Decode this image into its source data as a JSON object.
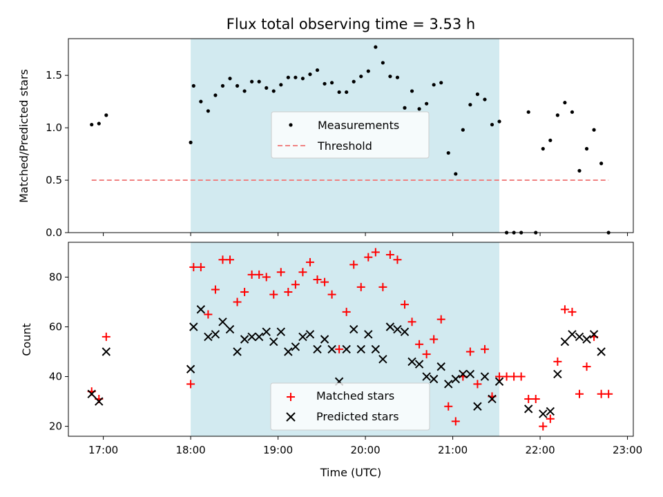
{
  "chart_data": [
    {
      "type": "scatter",
      "title": "Flux total observing time = 3.53 h",
      "xlabel": "",
      "ylabel": "Matched/Predicted stars",
      "xlim": [
        "16:36",
        "23:04"
      ],
      "ylim": [
        0,
        1.85
      ],
      "yticks": [
        "0.0",
        "0.5",
        "1.0",
        "1.5"
      ],
      "grid": false,
      "legend_position": "center",
      "shaded_interval": [
        "18:00",
        "21:32"
      ],
      "shade_color": "#d2eaf0",
      "series": [
        {
          "name": "Measurements",
          "marker": "dot",
          "color": "#000000",
          "x": [
            "16:52",
            "16:57",
            "17:02",
            "18:00",
            "18:02",
            "18:07",
            "18:12",
            "18:17",
            "18:22",
            "18:27",
            "18:32",
            "18:37",
            "18:42",
            "18:47",
            "18:52",
            "18:57",
            "19:02",
            "19:07",
            "19:12",
            "19:17",
            "19:22",
            "19:27",
            "19:32",
            "19:37",
            "19:42",
            "19:47",
            "19:52",
            "19:57",
            "20:02",
            "20:07",
            "20:12",
            "20:17",
            "20:22",
            "20:27",
            "20:32",
            "20:37",
            "20:42",
            "20:47",
            "20:52",
            "20:57",
            "21:02",
            "21:07",
            "21:12",
            "21:17",
            "21:22",
            "21:27",
            "21:32",
            "21:37",
            "21:42",
            "21:47",
            "21:52",
            "21:57",
            "22:02",
            "22:07",
            "22:12",
            "22:17",
            "22:22",
            "22:27",
            "22:32",
            "22:37",
            "22:42",
            "22:47"
          ],
          "y": [
            1.03,
            1.04,
            1.12,
            0.86,
            1.4,
            1.25,
            1.16,
            1.31,
            1.4,
            1.47,
            1.4,
            1.35,
            1.44,
            1.44,
            1.38,
            1.35,
            1.41,
            1.48,
            1.48,
            1.47,
            1.51,
            1.55,
            1.42,
            1.43,
            1.34,
            1.34,
            1.44,
            1.49,
            1.54,
            1.77,
            1.62,
            1.49,
            1.48,
            1.19,
            1.35,
            1.18,
            1.23,
            1.41,
            1.43,
            0.76,
            0.56,
            0.98,
            1.22,
            1.32,
            1.27,
            1.03,
            1.06,
            0,
            0,
            0,
            1.15,
            0,
            0.8,
            0.88,
            1.12,
            1.24,
            1.15,
            0.59,
            0.8,
            0.98,
            0.66,
            0
          ]
        },
        {
          "name": "Threshold",
          "line": "dashed",
          "color": "#f08080",
          "x": [
            "16:52",
            "22:47"
          ],
          "y": [
            0.5,
            0.5
          ]
        }
      ]
    },
    {
      "type": "scatter",
      "title": "",
      "xlabel": "Time (UTC)",
      "ylabel": "Count",
      "xlim": [
        "16:36",
        "23:04"
      ],
      "ylim": [
        16,
        94
      ],
      "yticks": [
        "20",
        "40",
        "60",
        "80"
      ],
      "xticks": [
        "17:00",
        "18:00",
        "19:00",
        "20:00",
        "21:00",
        "22:00",
        "23:00"
      ],
      "grid": false,
      "legend_position": "lower center",
      "shaded_interval": [
        "18:00",
        "21:32"
      ],
      "shade_color": "#d2eaf0",
      "series": [
        {
          "name": "Matched stars",
          "marker": "plus",
          "color": "#ff0000",
          "x": [
            "16:52",
            "16:57",
            "17:02",
            "18:00",
            "18:02",
            "18:07",
            "18:12",
            "18:17",
            "18:22",
            "18:27",
            "18:32",
            "18:37",
            "18:42",
            "18:47",
            "18:52",
            "18:57",
            "19:02",
            "19:07",
            "19:12",
            "19:17",
            "19:22",
            "19:27",
            "19:32",
            "19:37",
            "19:42",
            "19:47",
            "19:52",
            "19:57",
            "20:02",
            "20:07",
            "20:12",
            "20:17",
            "20:22",
            "20:27",
            "20:32",
            "20:37",
            "20:42",
            "20:47",
            "20:52",
            "20:57",
            "21:02",
            "21:07",
            "21:12",
            "21:17",
            "21:22",
            "21:27",
            "21:32",
            "21:37",
            "21:42",
            "21:47",
            "21:52",
            "21:57",
            "22:02",
            "22:07",
            "22:12",
            "22:17",
            "22:22",
            "22:27",
            "22:32",
            "22:37",
            "22:42",
            "22:47"
          ],
          "y": [
            34,
            31,
            56,
            37,
            84,
            84,
            65,
            75,
            87,
            87,
            70,
            74,
            81,
            81,
            80,
            73,
            82,
            74,
            77,
            82,
            86,
            79,
            78,
            73,
            51,
            66,
            85,
            76,
            88,
            90,
            76,
            89,
            87,
            69,
            62,
            53,
            49,
            55,
            63,
            28,
            22,
            40,
            50,
            37,
            51,
            32,
            40,
            40,
            40,
            40,
            31,
            31,
            20,
            23,
            46,
            67,
            66,
            33,
            44,
            56,
            33,
            33
          ]
        },
        {
          "name": "Predicted stars",
          "marker": "x",
          "color": "#000000",
          "x": [
            "16:52",
            "16:57",
            "17:02",
            "18:00",
            "18:02",
            "18:07",
            "18:12",
            "18:17",
            "18:22",
            "18:27",
            "18:32",
            "18:37",
            "18:42",
            "18:47",
            "18:52",
            "18:57",
            "19:02",
            "19:07",
            "19:12",
            "19:17",
            "19:22",
            "19:27",
            "19:32",
            "19:37",
            "19:42",
            "19:47",
            "19:52",
            "19:57",
            "20:02",
            "20:07",
            "20:12",
            "20:17",
            "20:22",
            "20:27",
            "20:32",
            "20:37",
            "20:42",
            "20:47",
            "20:52",
            "20:57",
            "21:02",
            "21:07",
            "21:12",
            "21:17",
            "21:22",
            "21:27",
            "21:32",
            "21:52",
            "22:02",
            "22:07",
            "22:12",
            "22:17",
            "22:22",
            "22:27",
            "22:32",
            "22:37",
            "22:42"
          ],
          "y": [
            33,
            30,
            50,
            43,
            60,
            67,
            56,
            57,
            62,
            59,
            50,
            55,
            56,
            56,
            58,
            54,
            58,
            50,
            52,
            56,
            57,
            51,
            55,
            51,
            38,
            51,
            59,
            51,
            57,
            51,
            47,
            60,
            59,
            58,
            46,
            45,
            40,
            39,
            44,
            37,
            39,
            41,
            41,
            28,
            40,
            31,
            38,
            27,
            25,
            26,
            41,
            54,
            57,
            56,
            55,
            57,
            50
          ]
        }
      ]
    }
  ]
}
